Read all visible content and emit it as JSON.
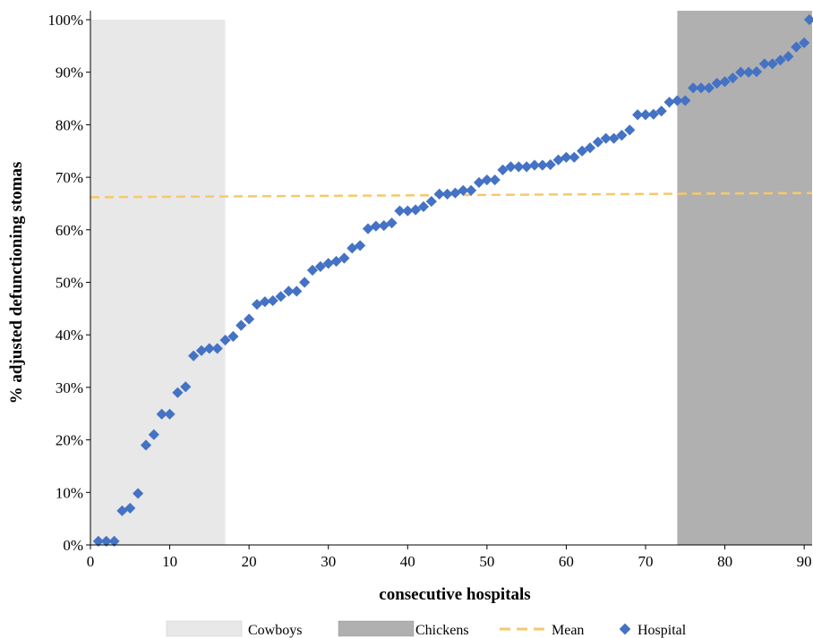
{
  "chart_data": {
    "type": "scatter",
    "xlabel": "consecutive hospitals",
    "ylabel": "% adjusted defunctioning stomas",
    "xlim": [
      0,
      91
    ],
    "ylim": [
      0,
      100
    ],
    "xticks": [
      0,
      10,
      20,
      30,
      40,
      50,
      60,
      70,
      80,
      90
    ],
    "xtick_labels": [
      "0",
      "10",
      "20",
      "30",
      "40",
      "50",
      "60",
      "70",
      "80",
      "90"
    ],
    "yticks": [
      0,
      10,
      20,
      30,
      40,
      50,
      60,
      70,
      80,
      90,
      100
    ],
    "ytick_labels": [
      "0%",
      "10%",
      "20%",
      "30%",
      "40%",
      "50%",
      "60%",
      "70%",
      "80%",
      "90%",
      "100%"
    ],
    "grid": false,
    "legend_position": "bottom",
    "bands": [
      {
        "name": "Cowboys",
        "x_range": [
          0,
          17
        ],
        "color": "#e8e8e8"
      },
      {
        "name": "Chickens",
        "x_range": [
          74,
          91
        ],
        "color": "#b0b0b0"
      }
    ],
    "mean_line": {
      "name": "Mean",
      "y_start": 66.2,
      "y_end": 67.0,
      "color": "#f5c96b"
    },
    "series": [
      {
        "name": "Hospital",
        "color": "#4472c4",
        "x": [
          1,
          2,
          3,
          4,
          5,
          6,
          7,
          8,
          9,
          10,
          11,
          12,
          13,
          14,
          15,
          16,
          17,
          18,
          19,
          20,
          21,
          22,
          23,
          24,
          25,
          26,
          27,
          28,
          29,
          30,
          31,
          32,
          33,
          34,
          35,
          36,
          37,
          38,
          39,
          40,
          41,
          42,
          43,
          44,
          45,
          46,
          47,
          48,
          49,
          50,
          51,
          52,
          53,
          54,
          55,
          56,
          57,
          58,
          59,
          60,
          61,
          62,
          63,
          64,
          65,
          66,
          67,
          68,
          69,
          70,
          71,
          72,
          73,
          74,
          75,
          76,
          77,
          78,
          79,
          80,
          81,
          82,
          83,
          84,
          85,
          86,
          87,
          88,
          89,
          90,
          91
        ],
        "values": [
          0.7,
          0.7,
          0.7,
          6.5,
          7.0,
          9.8,
          19.0,
          21.0,
          24.9,
          24.9,
          29.0,
          30.1,
          36.0,
          37.0,
          37.4,
          37.4,
          39.0,
          39.7,
          41.8,
          43.0,
          45.8,
          46.3,
          46.5,
          47.3,
          48.3,
          48.3,
          50.0,
          52.3,
          53.0,
          53.6,
          54.0,
          54.6,
          56.5,
          57.0,
          60.2,
          60.7,
          60.8,
          61.3,
          63.6,
          63.6,
          63.8,
          64.4,
          65.4,
          66.8,
          66.8,
          67.0,
          67.5,
          67.5,
          69.0,
          69.5,
          69.5,
          71.4,
          72.0,
          72.0,
          72.0,
          72.3,
          72.3,
          72.4,
          73.3,
          73.8,
          73.8,
          75.0,
          75.6,
          76.7,
          77.4,
          77.4,
          78.0,
          79.0,
          81.9,
          81.9,
          82.0,
          82.6,
          84.3,
          84.6,
          84.6,
          87.0,
          87.0,
          87.0,
          87.9,
          88.2,
          88.9,
          90.0,
          90.0,
          90.1,
          91.6,
          91.6,
          92.3,
          93.0,
          94.8,
          95.6,
          100.0
        ]
      }
    ]
  },
  "legend": {
    "cowboys_label": "Cowboys",
    "chickens_label": "Chickens",
    "mean_label": "Mean",
    "hospital_label": "Hospital"
  }
}
